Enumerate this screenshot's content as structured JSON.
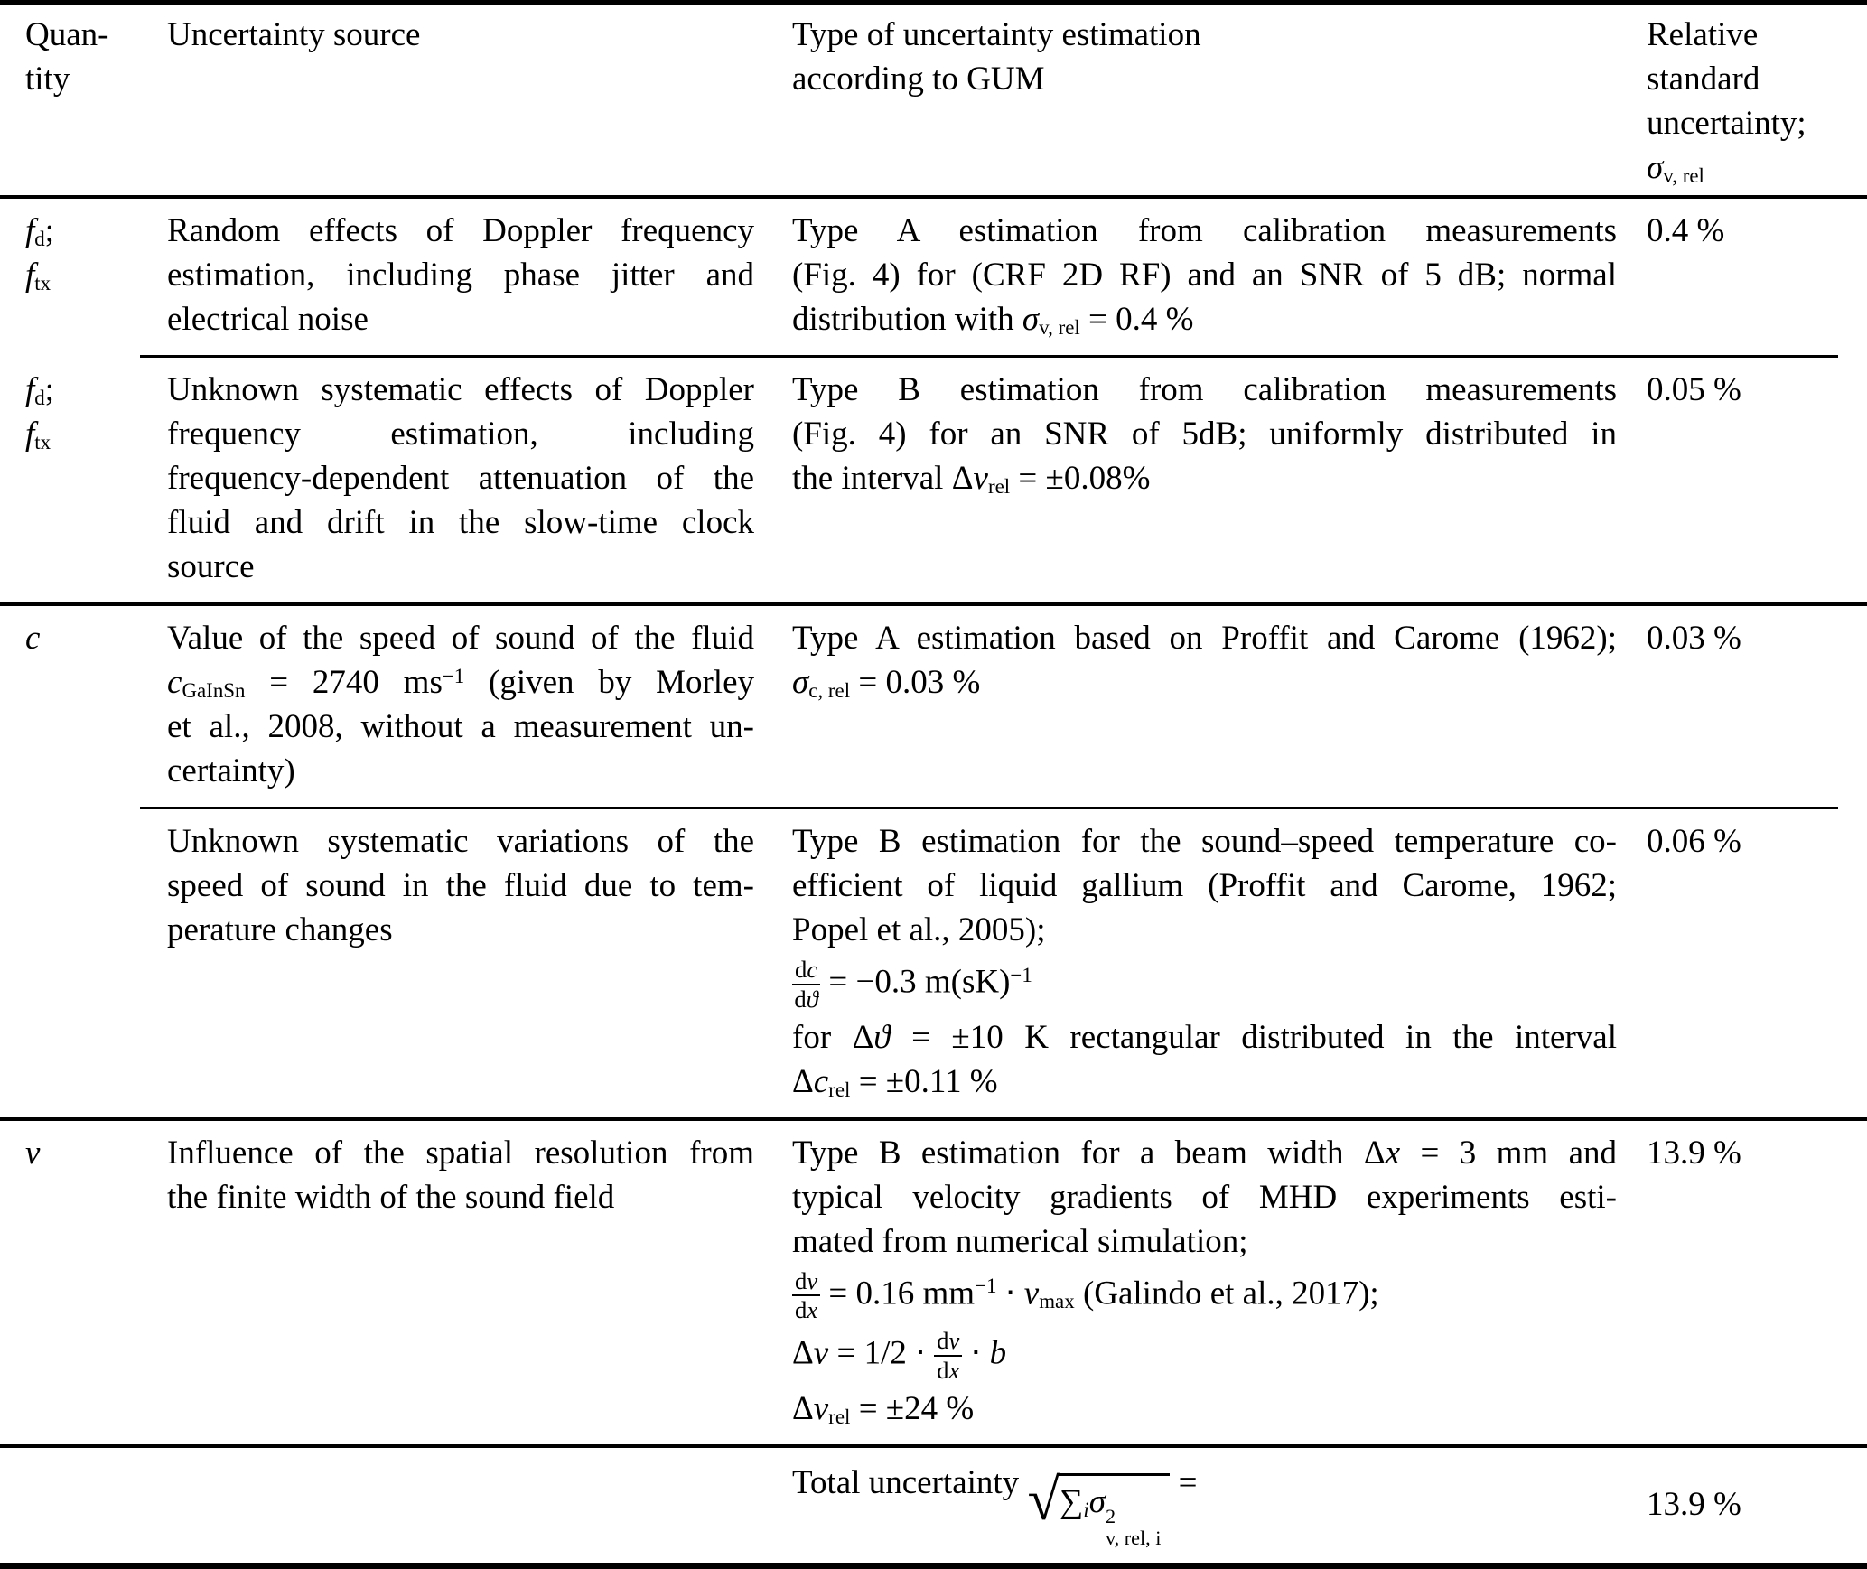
{
  "colors": {
    "text": "#000000",
    "background": "#ffffff",
    "rule": "#000000"
  },
  "table": {
    "header": {
      "qty": [
        {
          "tk": [
            {
              "t": "Quan-"
            }
          ]
        },
        {
          "tk": [
            {
              "t": "tity"
            }
          ]
        }
      ],
      "source": [
        {
          "tk": [
            {
              "t": "Uncertainty source"
            }
          ]
        }
      ],
      "type": [
        {
          "tk": [
            {
              "t": "Type of uncertainty estimation"
            }
          ]
        },
        {
          "tk": [
            {
              "t": "according to GUM"
            }
          ]
        }
      ],
      "rel": [
        {
          "tk": [
            {
              "t": "Relative"
            }
          ]
        },
        {
          "tk": [
            {
              "t": "standard"
            }
          ]
        },
        {
          "tk": [
            {
              "t": "uncertainty;"
            }
          ]
        },
        {
          "tk": [
            {
              "i": "σ"
            },
            {
              "sub": "v, rel"
            }
          ]
        }
      ]
    },
    "rows": [
      {
        "name": "row-doppler-random",
        "qty": [
          {
            "tk": [
              {
                "i": "f"
              },
              {
                "sub": "d"
              },
              {
                "t": ";"
              }
            ]
          },
          {
            "tk": [
              {
                "i": "f"
              },
              {
                "sub": "tx"
              }
            ]
          }
        ],
        "source": [
          {
            "j": 1,
            "tk": [
              {
                "t": "Random effects of Doppler frequency"
              }
            ]
          },
          {
            "j": 1,
            "tk": [
              {
                "t": "estimation, including phase jitter and"
              }
            ]
          },
          {
            "tk": [
              {
                "t": "electrical noise"
              }
            ]
          }
        ],
        "type": [
          {
            "j": 1,
            "tk": [
              {
                "t": "Type A estimation from calibration measurements"
              }
            ]
          },
          {
            "j": 1,
            "tk": [
              {
                "t": "(Fig. 4) for (CRF 2D RF) and an SNR of 5 dB; normal"
              }
            ]
          },
          {
            "tk": [
              {
                "t": "distribution with "
              },
              {
                "i": "σ"
              },
              {
                "sub": "v, rel"
              },
              {
                "t": " = 0.4 %"
              }
            ]
          }
        ],
        "rel": "0.4 %",
        "rule_after": "cmid"
      },
      {
        "name": "row-doppler-systematic",
        "qty": [
          {
            "tk": [
              {
                "i": "f"
              },
              {
                "sub": "d"
              },
              {
                "t": ";"
              }
            ]
          },
          {
            "tk": [
              {
                "i": "f"
              },
              {
                "sub": "tx"
              }
            ]
          }
        ],
        "source": [
          {
            "j": 1,
            "tk": [
              {
                "t": "Unknown systematic effects of Doppler"
              }
            ]
          },
          {
            "j": 1,
            "tk": [
              {
                "t": "frequency estimation, including"
              }
            ]
          },
          {
            "j": 1,
            "tk": [
              {
                "t": "frequency-dependent attenuation of the"
              }
            ]
          },
          {
            "j": 1,
            "tk": [
              {
                "t": "fluid and drift in the slow-time clock"
              }
            ]
          },
          {
            "tk": [
              {
                "t": "source"
              }
            ]
          }
        ],
        "type": [
          {
            "j": 1,
            "tk": [
              {
                "t": "Type B estimation from calibration measurements"
              }
            ]
          },
          {
            "j": 1,
            "tk": [
              {
                "t": "(Fig. 4) for an SNR of 5dB; uniformly distributed in"
              }
            ]
          },
          {
            "tk": [
              {
                "t": "the interval Δ"
              },
              {
                "i": "v"
              },
              {
                "sub": "rel"
              },
              {
                "t": " = ±0.08%"
              }
            ]
          }
        ],
        "rel": "0.05 %",
        "rule_after": "full"
      },
      {
        "name": "row-speed-of-sound-value",
        "qty": [
          {
            "tk": [
              {
                "i": "c"
              }
            ]
          }
        ],
        "source": [
          {
            "j": 1,
            "tk": [
              {
                "t": "Value of the speed of sound of the fluid"
              }
            ]
          },
          {
            "j": 1,
            "tk": [
              {
                "i": "c"
              },
              {
                "sub": "GaInSn"
              },
              {
                "t": " = 2740 ms"
              },
              {
                "sup": "−1"
              },
              {
                "t": " (given by Morley"
              }
            ]
          },
          {
            "j": 1,
            "tk": [
              {
                "t": "et al., 2008, without a measurement un-"
              }
            ]
          },
          {
            "tk": [
              {
                "t": "certainty)"
              }
            ]
          }
        ],
        "type": [
          {
            "j": 1,
            "tk": [
              {
                "t": "Type A estimation based on Proffit and Carome (1962);"
              }
            ]
          },
          {
            "tk": [
              {
                "i": "σ"
              },
              {
                "sub": "c, rel"
              },
              {
                "t": " = 0.03 %"
              }
            ]
          }
        ],
        "rel": "0.03 %",
        "rule_after": "cmid"
      },
      {
        "name": "row-speed-of-sound-temperature",
        "qty": null,
        "source": [
          {
            "j": 1,
            "tk": [
              {
                "t": "Unknown systematic variations of the"
              }
            ]
          },
          {
            "j": 1,
            "tk": [
              {
                "t": "speed of sound in the fluid due to tem-"
              }
            ]
          },
          {
            "tk": [
              {
                "t": "perature changes"
              }
            ]
          }
        ],
        "type": [
          {
            "j": 1,
            "tk": [
              {
                "t": "Type B estimation for the sound–speed temperature co-"
              }
            ]
          },
          {
            "j": 1,
            "tk": [
              {
                "t": "efficient of liquid gallium (Proffit and Carome, 1962;"
              }
            ]
          },
          {
            "tk": [
              {
                "t": "Popel et al., 2005);"
              }
            ]
          },
          {
            "eq": 1,
            "tk": [
              {
                "frac": {
                  "n": [
                    {
                      "t": "d"
                    },
                    {
                      "i": "c"
                    }
                  ],
                  "d": [
                    {
                      "t": "d"
                    },
                    {
                      "i": "ϑ"
                    }
                  ]
                }
              },
              {
                "t": " = −0.3 m(sK)"
              },
              {
                "sup": "−1"
              }
            ]
          },
          {
            "j": 1,
            "tk": [
              {
                "t": "for Δ"
              },
              {
                "i": "ϑ"
              },
              {
                "t": " = ±10 K rectangular distributed in the interval"
              }
            ]
          },
          {
            "tk": [
              {
                "t": "Δ"
              },
              {
                "i": "c"
              },
              {
                "sub": "rel"
              },
              {
                "t": " = ±0.11 %"
              }
            ]
          }
        ],
        "rel": "0.06 %",
        "rule_after": "full"
      },
      {
        "name": "row-spatial-resolution",
        "qty": [
          {
            "tk": [
              {
                "i": "v"
              }
            ]
          }
        ],
        "source": [
          {
            "j": 1,
            "tk": [
              {
                "t": "Influence of the spatial resolution from"
              }
            ]
          },
          {
            "tk": [
              {
                "t": "the finite width of the sound field"
              }
            ]
          }
        ],
        "type": [
          {
            "j": 1,
            "tk": [
              {
                "t": "Type B estimation for a beam width Δ"
              },
              {
                "i": "x"
              },
              {
                "t": " = 3 mm and"
              }
            ]
          },
          {
            "j": 1,
            "tk": [
              {
                "t": "typical velocity gradients of MHD experiments esti-"
              }
            ]
          },
          {
            "tk": [
              {
                "t": "mated from numerical simulation;"
              }
            ]
          },
          {
            "eq": 1,
            "tk": [
              {
                "frac": {
                  "n": [
                    {
                      "t": "d"
                    },
                    {
                      "i": "v"
                    }
                  ],
                  "d": [
                    {
                      "t": "d"
                    },
                    {
                      "i": "x"
                    }
                  ]
                }
              },
              {
                "t": " = 0.16 mm"
              },
              {
                "sup": "−1"
              },
              {
                "t": " ⋅ "
              },
              {
                "i": "v"
              },
              {
                "sub": "max"
              },
              {
                "t": " (Galindo et al., 2017);"
              }
            ]
          },
          {
            "eq": 1,
            "tk": [
              {
                "t": "Δ"
              },
              {
                "i": "v"
              },
              {
                "t": " = 1/2 ⋅ "
              },
              {
                "frac": {
                  "n": [
                    {
                      "t": "d"
                    },
                    {
                      "i": "v"
                    }
                  ],
                  "d": [
                    {
                      "t": "d"
                    },
                    {
                      "i": "x"
                    }
                  ]
                }
              },
              {
                "t": " ⋅ "
              },
              {
                "i": "b"
              }
            ]
          },
          {
            "tk": [
              {
                "t": "Δ"
              },
              {
                "i": "v"
              },
              {
                "sub": "rel"
              },
              {
                "t": " = ±24 %"
              }
            ]
          }
        ],
        "rel": "13.9 %",
        "rule_after": "full"
      },
      {
        "name": "row-total-uncertainty",
        "total": true,
        "qty": null,
        "source": null,
        "type": [
          {
            "tk": [
              {
                "t": "Total uncertainty "
              },
              {
                "sqrt": {
                  "sign": "√",
                  "tk": [
                    {
                      "t": "∑"
                    },
                    {
                      "isub": "i"
                    },
                    {
                      "i": "σ"
                    },
                    {
                      "ss": {
                        "sup": "2",
                        "sub": "v, rel, i"
                      }
                    }
                  ]
                }
              },
              {
                "t": " ="
              }
            ]
          }
        ],
        "rel": "13.9 %",
        "rule_after": "bottom"
      }
    ]
  }
}
